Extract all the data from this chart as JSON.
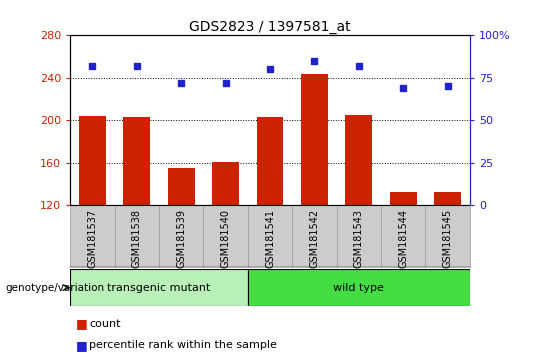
{
  "title": "GDS2823 / 1397581_at",
  "samples": [
    "GSM181537",
    "GSM181538",
    "GSM181539",
    "GSM181540",
    "GSM181541",
    "GSM181542",
    "GSM181543",
    "GSM181544",
    "GSM181545"
  ],
  "counts": [
    204,
    203,
    155,
    161,
    203,
    244,
    205,
    133,
    133
  ],
  "percentiles": [
    82,
    82,
    72,
    72,
    80,
    85,
    82,
    69,
    70
  ],
  "bar_color": "#cc2200",
  "dot_color": "#2222cc",
  "ylim_left": [
    120,
    280
  ],
  "ylim_right": [
    0,
    100
  ],
  "yticks_left": [
    120,
    160,
    200,
    240,
    280
  ],
  "yticks_right": [
    0,
    25,
    50,
    75,
    100
  ],
  "group1_label": "transgenic mutant",
  "group2_label": "wild type",
  "group1_color": "#b8f0b8",
  "group2_color": "#44dd44",
  "group1_count": 4,
  "group2_count": 5,
  "genotype_label": "genotype/variation",
  "legend_count": "count",
  "legend_percentile": "percentile rank within the sample",
  "bar_bottom": 120,
  "bar_width": 0.6,
  "label_box_color": "#cccccc",
  "label_box_edge": "#999999"
}
